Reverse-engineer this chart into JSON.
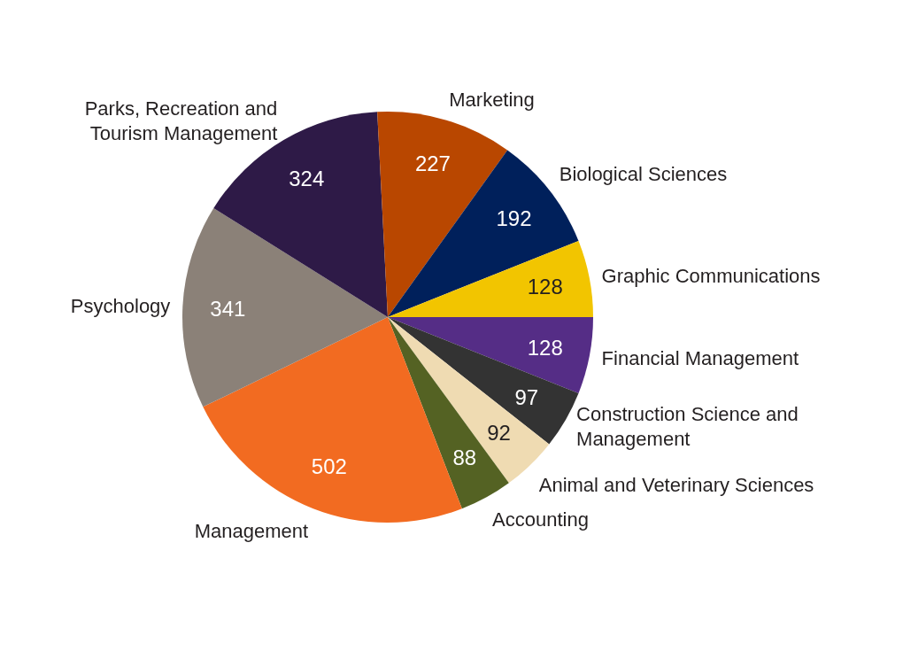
{
  "chart_data": {
    "type": "pie",
    "categories": [
      "Financial Management",
      "Construction Science and Management",
      "Animal and Veterinary Sciences",
      "Accounting",
      "Management",
      "Psychology",
      "Parks, Recreation and Tourism Management",
      "Marketing",
      "Biological Sciences",
      "Graphic Communications"
    ],
    "values": [
      128,
      97,
      92,
      88,
      502,
      341,
      324,
      227,
      192,
      128
    ],
    "colors": [
      "#552d86",
      "#333333",
      "#efdbb2",
      "#546223",
      "#f26b21",
      "#8b8178",
      "#2e1a47",
      "#b94700",
      "#00205b",
      "#f2c500"
    ],
    "data_labels": true
  }
}
